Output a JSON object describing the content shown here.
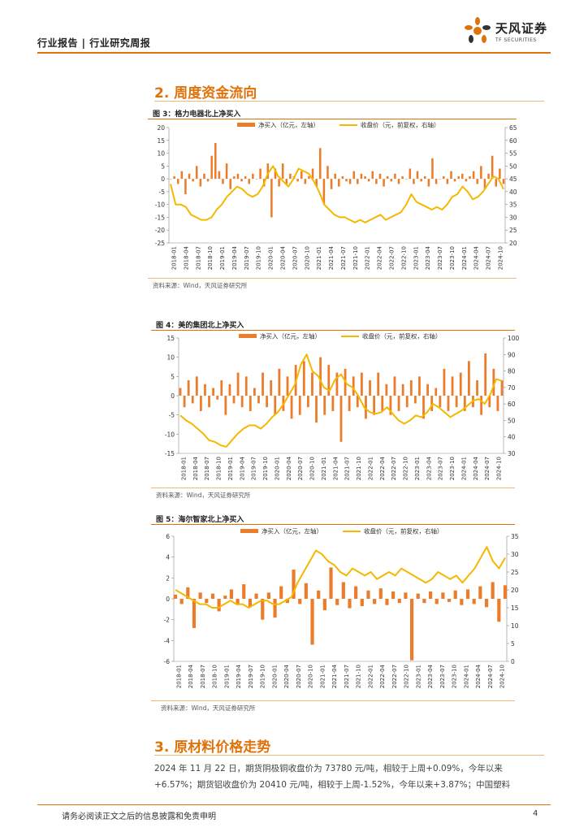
{
  "header": {
    "title": "行业报告 | 行业研究周报",
    "logo_cn": "天风证券",
    "logo_en": "TF SECURITIES"
  },
  "section2": {
    "title": "2. 周度资金流向"
  },
  "section3": {
    "title": "3. 原材料价格走势",
    "para_line1": "2024 年 11 月 22 日，期货阴极铜收盘价为 73780 元/吨，相较于上周+0.09%，今年以来",
    "para_line2": "+6.57%；期货铝收盘价为 20410 元/吨，相较于上周-1.52%，今年以来+3.87%；中国塑料"
  },
  "colors": {
    "accent": "#e0720a",
    "bar": "#ec7c2a",
    "line": "#f5b800"
  },
  "charts": [
    {
      "caption": "图 3：格力电器北上净买入",
      "source": "资料来源：Wind，天风证券研究所",
      "chart_data": {
        "type": "bar+line",
        "legend": [
          "净买入（亿元，左轴）",
          "收盘价（元，前复权，右轴）"
        ],
        "left_ticks": [
          "20",
          "15",
          "10",
          "5",
          "0",
          "-5",
          "-10",
          "-15",
          "-20",
          "-25"
        ],
        "right_ticks": [
          "65",
          "60",
          "55",
          "50",
          "45",
          "40",
          "35",
          "30",
          "25",
          "20"
        ],
        "left_range": [
          -25,
          20
        ],
        "right_range": [
          20,
          65
        ],
        "x_labels": [
          "2018-01",
          "2018-04",
          "2018-07",
          "2018-10",
          "2019-01",
          "2019-04",
          "2019-07",
          "2019-10",
          "2020-01",
          "2020-04",
          "2020-07",
          "2020-10",
          "2021-01",
          "2021-04",
          "2021-07",
          "2021-10",
          "2022-01",
          "2022-04",
          "2022-07",
          "2022-10",
          "2023-01",
          "2023-04",
          "2023-07",
          "2023-10",
          "2024-01",
          "2024-04",
          "2024-07",
          "2024-10"
        ],
        "series": [
          {
            "name": "净买入（亿元，左轴）",
            "type": "bar",
            "values": [
              0,
              1,
              -2,
              3,
              -6,
              2,
              -1,
              5,
              -3,
              2,
              -1,
              9,
              14,
              3,
              -2,
              6,
              -4,
              1,
              2,
              -1,
              1,
              -2,
              2,
              0,
              4,
              -3,
              6,
              -15,
              4,
              -3,
              6,
              -2,
              2,
              1,
              -1,
              3,
              -2,
              1,
              4,
              -3,
              12,
              -10,
              5,
              -4,
              2,
              -3,
              1,
              -1,
              -2,
              3,
              -2,
              2,
              1,
              -1,
              3,
              -2,
              2,
              -3,
              1,
              -1,
              2,
              -2,
              1,
              0,
              4,
              -2,
              3,
              -1,
              1,
              -3,
              8,
              -2,
              0,
              1,
              -2,
              3,
              -1,
              1,
              2,
              -1,
              1,
              3,
              -2,
              5,
              -4,
              2,
              9,
              -3,
              4,
              -2
            ]
          },
          {
            "name": "收盘价（元，前复权，右轴）",
            "type": "line",
            "values": [
              43,
              35,
              35,
              34,
              31,
              30,
              29,
              29,
              30,
              33,
              35,
              38,
              40,
              42,
              41,
              39,
              38,
              39,
              42,
              47,
              50,
              46,
              44,
              42,
              45,
              49,
              48,
              47,
              44,
              40,
              35,
              33,
              31,
              30,
              30,
              29,
              28,
              29,
              28,
              29,
              30,
              31,
              29,
              30,
              31,
              32,
              35,
              39,
              36,
              35,
              34,
              33,
              34,
              33,
              35,
              38,
              39,
              42,
              40,
              37,
              38,
              40,
              43,
              46,
              45,
              41
            ]
          }
        ]
      }
    },
    {
      "caption": "图 4：美的集团北上净买入",
      "source": "资料来源：Wind，天风证券研究所",
      "chart_data": {
        "type": "bar+line",
        "legend": [
          "净买入（亿元，左轴）",
          "收盘价（元，前复权，右轴）"
        ],
        "left_ticks": [
          "15",
          "10",
          "5",
          "0",
          "-5",
          "-10",
          "-15"
        ],
        "right_ticks": [
          "100",
          "90",
          "80",
          "70",
          "60",
          "50",
          "40",
          "30"
        ],
        "left_range": [
          -15,
          15
        ],
        "right_range": [
          30,
          100
        ],
        "x_labels": [
          "2018-01",
          "2018-04",
          "2018-07",
          "2018-10",
          "2019-01",
          "2019-04",
          "2019-07",
          "2019-10",
          "2020-01",
          "2020-04",
          "2020-07",
          "2020-10",
          "2021-01",
          "2021-04",
          "2021-07",
          "2021-10",
          "2022-01",
          "2022-04",
          "2022-07",
          "2022-10",
          "2023-01",
          "2023-04",
          "2023-07",
          "2023-10",
          "2024-01",
          "2024-04",
          "2024-07",
          "2024-10"
        ],
        "series": [
          {
            "name": "净买入（亿元，左轴）",
            "type": "bar",
            "values": [
              2,
              -3,
              4,
              -2,
              5,
              -4,
              3,
              -3,
              2,
              -1,
              4,
              -5,
              3,
              -2,
              6,
              -3,
              5,
              -4,
              2,
              -2,
              6,
              -3,
              4,
              -5,
              7,
              -4,
              5,
              -6,
              8,
              -5,
              9,
              -3,
              6,
              -7,
              10,
              -5,
              8,
              -4,
              6,
              -12,
              7,
              -4,
              5,
              -3,
              6,
              -6,
              4,
              -5,
              6,
              -4,
              3,
              -5,
              5,
              -4,
              3,
              -3,
              4,
              -2,
              5,
              -6,
              3,
              -4,
              2,
              -3,
              7,
              -4,
              5,
              -3,
              6,
              -4,
              9,
              -3,
              4,
              -5,
              11,
              -3,
              7,
              -4,
              4
            ]
          },
          {
            "name": "收盘价（元，前复权，右轴）",
            "type": "line",
            "values": [
              53,
              50,
              48,
              45,
              42,
              38,
              37,
              35,
              34,
              38,
              42,
              45,
              47,
              47,
              45,
              48,
              52,
              55,
              60,
              66,
              72,
              84,
              90,
              80,
              77,
              70,
              68,
              75,
              78,
              72,
              70,
              65,
              58,
              55,
              54,
              55,
              58,
              54,
              50,
              48,
              50,
              53,
              52,
              55,
              60,
              58,
              55,
              52,
              54,
              56,
              59,
              62,
              63,
              60,
              66,
              75,
              74
            ]
          }
        ]
      }
    },
    {
      "caption": "图 5：海尔智家北上净买入",
      "source": "资料来源：Wind，天风证券研究所",
      "chart_data": {
        "type": "bar+line",
        "legend": [
          "净买入（亿元，左轴）",
          "收盘价（元，前复权，右轴）"
        ],
        "left_ticks": [
          "6",
          "4",
          "2",
          "0",
          "-2",
          "-4",
          "-6"
        ],
        "right_ticks": [
          "35",
          "30",
          "25",
          "20",
          "15",
          "10",
          "5",
          "0"
        ],
        "left_range": [
          -6,
          6
        ],
        "right_range": [
          0,
          35
        ],
        "x_labels": [
          "2018-01",
          "2018-04",
          "2018-07",
          "2018-10",
          "2019-01",
          "2019-04",
          "2019-07",
          "2019-10",
          "2020-01",
          "2020-04",
          "2020-07",
          "2020-10",
          "2021-01",
          "2021-04",
          "2021-07",
          "2021-10",
          "2022-01",
          "2022-04",
          "2022-07",
          "2022-10",
          "2023-01",
          "2023-04",
          "2023-07",
          "2023-10",
          "2024-01",
          "2024-04",
          "2024-07",
          "2024-10"
        ],
        "series": [
          {
            "name": "净买入（亿元，左轴）",
            "type": "bar",
            "values": [
              0.4,
              -0.5,
              1.1,
              -2.8,
              0.6,
              -0.4,
              0.5,
              -1.2,
              0.3,
              0.9,
              -0.6,
              1.4,
              -0.8,
              0.5,
              -2.0,
              0.6,
              -1.8,
              1.2,
              -0.4,
              2.8,
              -0.5,
              1.5,
              -4.4,
              0.8,
              -1.1,
              3.0,
              -0.6,
              1.6,
              -0.9,
              1.2,
              -0.7,
              0.8,
              -0.5,
              1.0,
              -0.6,
              0.7,
              -0.4,
              0.6,
              -5.9,
              0.5,
              -0.4,
              0.7,
              -0.5,
              0.6,
              -0.3,
              0.8,
              -0.6,
              0.9,
              -0.5,
              1.2,
              -0.8,
              1.6,
              -2.2,
              1.3
            ]
          },
          {
            "name": "收盘价（元，前复权，右轴）",
            "type": "line",
            "values": [
              20,
              19,
              18,
              17,
              16,
              16,
              15,
              15,
              16,
              17,
              16,
              16,
              15,
              16,
              17,
              17,
              16,
              16,
              17,
              18,
              22,
              25,
              28,
              31,
              30,
              28,
              27,
              25,
              24,
              26,
              25,
              24,
              25,
              23,
              24,
              25,
              24,
              26,
              25,
              24,
              23,
              22,
              23,
              25,
              24,
              23,
              24,
              22,
              24,
              26,
              29,
              32,
              28,
              26,
              29
            ]
          }
        ]
      }
    }
  ],
  "footer": {
    "disclaimer": "请务必阅读正文之后的信息披露和免责申明",
    "page": "4"
  }
}
